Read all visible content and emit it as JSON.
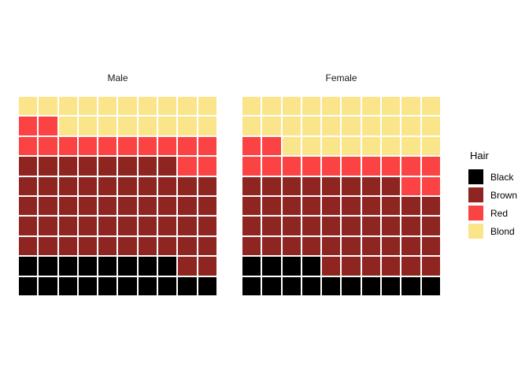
{
  "chart_data": {
    "type": "waffle",
    "description_layout": {
      "grid_rows": 10,
      "grid_cols": 10,
      "fill_origin": "bottom-left"
    },
    "cell_codes": {
      "K": "Black",
      "B": "Brown",
      "R": "Red",
      "Y": "Blond"
    },
    "palette": {
      "Black": "#000000",
      "Brown": "#8E2521",
      "Red": "#FC4343",
      "Blond": "#FAE58B"
    },
    "background_color": "#ffffff",
    "facets": [
      {
        "label": "Male",
        "rows_top_to_bottom": [
          "YYYYYYYYYY",
          "RRYYYYYYYY",
          "RRRRRRRRRR",
          "BBBBBBBBRR",
          "BBBBBBBBBB",
          "BBBBBBBBBB",
          "BBBBBBBBBB",
          "BBBBBBBBBB",
          "KKKKKKKKBB",
          "KKKKKKKKKK"
        ],
        "counts": {
          "Black": 18,
          "Brown": 50,
          "Red": 14,
          "Blond": 18
        }
      },
      {
        "label": "Female",
        "rows_top_to_bottom": [
          "YYYYYYYYYY",
          "YYYYYYYYYY",
          "RRYYYYYYYY",
          "RRRRRRRRRR",
          "BBBBBBBBRR",
          "BBBBBBBBBB",
          "BBBBBBBBBB",
          "BBBBBBBBBB",
          "KKKKBBBBBB",
          "KKKKKKKKKK"
        ],
        "counts": {
          "Black": 14,
          "Brown": 44,
          "Red": 14,
          "Blond": 28
        }
      }
    ],
    "legend": {
      "title": "Hair",
      "position": "right",
      "entries": [
        {
          "label": "Black",
          "color": "#000000"
        },
        {
          "label": "Brown",
          "color": "#8E2521"
        },
        {
          "label": "Red",
          "color": "#FC4343"
        },
        {
          "label": "Blond",
          "color": "#FAE58B"
        }
      ]
    }
  }
}
